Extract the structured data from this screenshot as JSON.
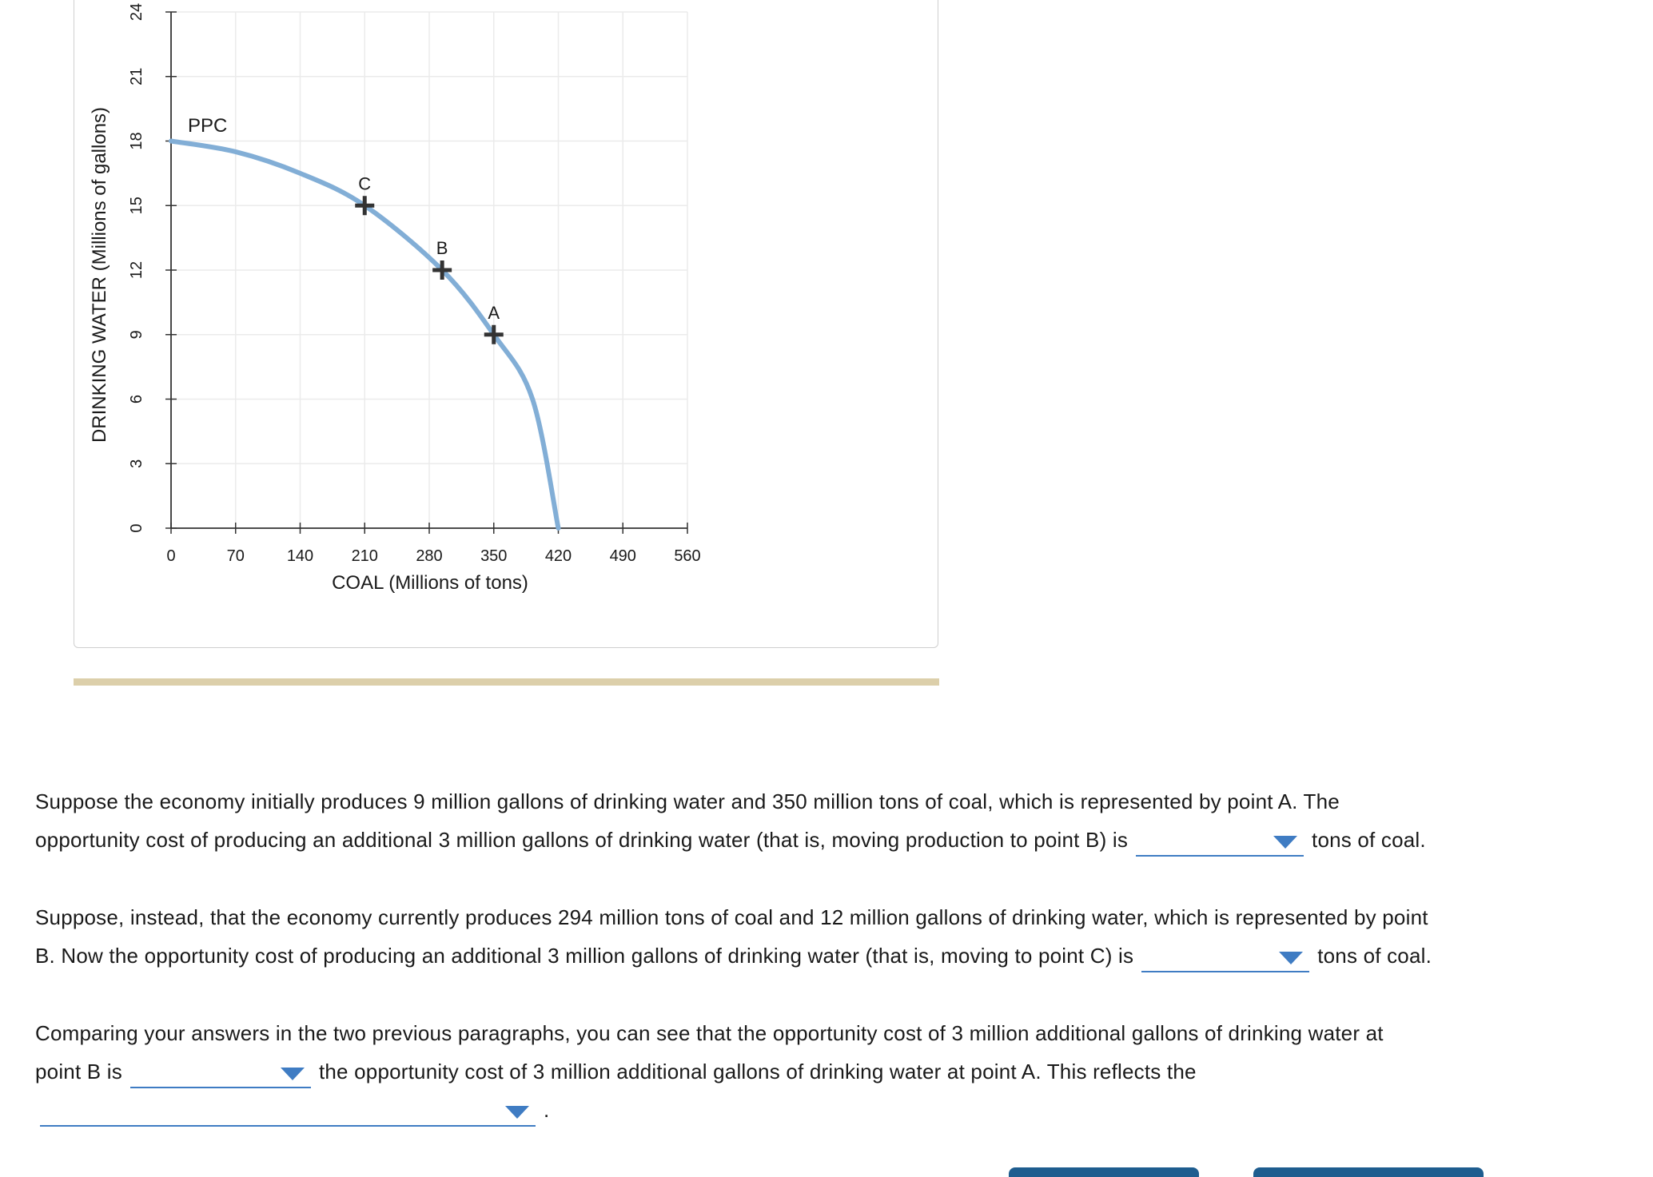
{
  "chart_data": {
    "type": "line",
    "xlabel": "COAL (Millions of tons)",
    "ylabel": "DRINKING WATER (Millions of gallons)",
    "xlim": [
      0,
      560
    ],
    "ylim": [
      0,
      24
    ],
    "x_ticks": [
      "0",
      "70",
      "140",
      "210",
      "280",
      "350",
      "420",
      "490",
      "560"
    ],
    "y_ticks": [
      "0",
      "3",
      "6",
      "9",
      "12",
      "15",
      "18",
      "21",
      "24"
    ],
    "grid": true,
    "series": [
      {
        "name": "PPC",
        "x": [
          0,
          70,
          140,
          210,
          294,
          350,
          392,
          420
        ],
        "y": [
          18,
          17.5,
          16.5,
          15,
          12,
          9,
          6,
          0
        ]
      }
    ],
    "points": [
      {
        "label": "C",
        "x": 210,
        "y": 15
      },
      {
        "label": "B",
        "x": 294,
        "y": 12
      },
      {
        "label": "A",
        "x": 350,
        "y": 9
      }
    ],
    "line_color": "#82aed6"
  },
  "questions": {
    "q1": {
      "line1": "Suppose the economy initially produces 9 million gallons of drinking water and 350 million tons of coal, which is represented by point A. The",
      "line2_before": "opportunity cost of producing an additional 3 million gallons of drinking water (that is, moving production to point B) is",
      "selected": "",
      "line2_after": "tons of coal."
    },
    "q2": {
      "line1": "Suppose, instead, that the economy currently produces 294 million tons of coal and 12 million gallons of drinking water, which is represented by point",
      "line2_before": "B. Now the opportunity cost of producing an additional 3 million gallons of drinking water (that is, moving to point C) is",
      "selected": "",
      "line2_after": "tons of coal."
    },
    "q3": {
      "line1": "Comparing your answers in the two previous paragraphs, you can see that the opportunity cost of 3 million additional gallons of drinking water at",
      "line2_before": "point B is",
      "selected": "",
      "line2_after": "the opportunity cost of 3 million additional gallons of drinking water at point A. This reflects the",
      "selected2": "",
      "line3_after": "."
    }
  },
  "colors": {
    "dropdown_accent": "#3f7cc3",
    "divider": "#dccfaa",
    "button": "#1e5d8f"
  }
}
